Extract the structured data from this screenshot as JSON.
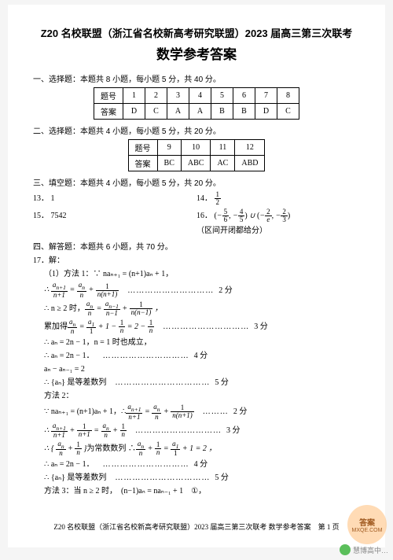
{
  "header": {
    "line1": "Z20 名校联盟（浙江省名校新高考研究联盟）2023 届高三第三次联考",
    "line2": "数学参考答案"
  },
  "section1": {
    "label": "一、选择题：本题共 8 小题，每小题 5 分，共 40 分。",
    "table": {
      "head": "题号",
      "ansLabel": "答案",
      "cols": [
        "1",
        "2",
        "3",
        "4",
        "5",
        "6",
        "7",
        "8"
      ],
      "ans": [
        "D",
        "C",
        "A",
        "A",
        "B",
        "B",
        "D",
        "C"
      ]
    }
  },
  "section2": {
    "label": "二、选择题：本题共 4 小题，每小题 5 分，共 20 分。",
    "table": {
      "head": "题号",
      "ansLabel": "答案",
      "cols": [
        "9",
        "10",
        "11",
        "12"
      ],
      "ans": [
        "BC",
        "ABC",
        "AC",
        "ABD"
      ]
    }
  },
  "section3": {
    "label": "三、填空题：本题共 4 小题，每小题 5 分，共 20 分。",
    "items": {
      "q13": {
        "num": "13．",
        "val": "1"
      },
      "q14": {
        "num": "14．",
        "val_html": "half"
      },
      "q15": {
        "num": "15．",
        "val": "7542"
      },
      "q16": {
        "num": "16．",
        "note": "（区间开闭都给分）"
      }
    }
  },
  "section4": {
    "label": "四、解答题：本题共 6 小题，共 70 分。",
    "q17": {
      "num": "17．解：",
      "m1": "（1）方法 1：∵ naₙ₊₁ = (n+1)aₙ + 1，",
      "score2": "2 分",
      "score3": "3 分",
      "score4": "4 分",
      "score5": "5 分",
      "l_n2": "∴ n ≥ 2 时，",
      "l_sum": "累加得",
      "l_an": "∴ aₙ = 2n − 1，n = 1 时也成立，",
      "l_an2": "∴ aₙ = 2n − 1．",
      "l_diff": "aₙ − aₙ₋₁ = 2",
      "l_seq": "∴ {aₙ} 是等差数列",
      "m2": "方法 2：",
      "m2a": "∵ naₙ₊₁ = (n+1)aₙ + 1，∴",
      "m2c": "为常数数列 ∴",
      "m2d": "∴ aₙ = 2n − 1．",
      "m2e": "∴ {aₙ} 是等差数列",
      "m3": "方法 3：当 n ≥ 2 时，　(n−1)aₙ = naₙ₋₁ + 1　①，"
    }
  },
  "footer": "Z20 名校联盟（浙江省名校新高考研究联盟）2023 届高三第三次联考  数学参考答案　第 1 页",
  "watermark": "慧博高中…",
  "badge": {
    "big": "答案",
    "small": "MXQE.COM"
  }
}
